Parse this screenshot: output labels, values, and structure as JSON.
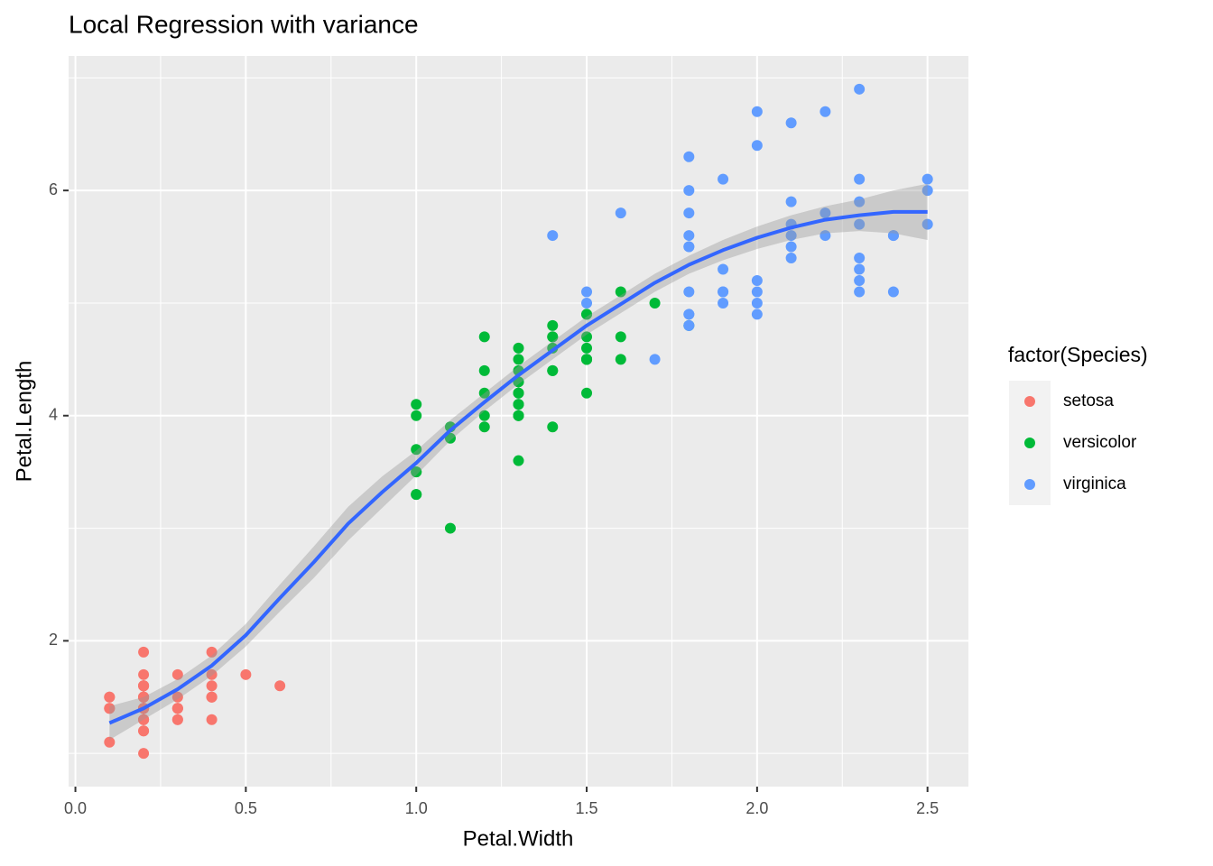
{
  "chart_data": {
    "type": "scatter",
    "title": "Local Regression with variance",
    "x_label": "Petal.Width",
    "y_label": "Petal.Length",
    "legend_title": "factor(Species)",
    "legend_position": "right",
    "grid": true,
    "xlim": [
      -0.02,
      2.62
    ],
    "ylim": [
      0.705,
      7.195
    ],
    "xticks": [
      {
        "value": 0,
        "label": "0.0"
      },
      0.5,
      {
        "value": 1,
        "label": "1.0"
      },
      1.5,
      {
        "value": 2,
        "label": "2.0"
      },
      2.5
    ],
    "yticks": [
      2,
      4,
      6
    ],
    "x_minor_grid": [
      0.25,
      0.75,
      1.25,
      1.75,
      2.25
    ],
    "y_minor_grid": [
      1,
      3,
      5,
      7
    ],
    "series": [
      {
        "name": "setosa",
        "color": "#F8766D",
        "x": [
          0.2,
          0.2,
          0.2,
          0.2,
          0.2,
          0.4,
          0.3,
          0.2,
          0.2,
          0.1,
          0.2,
          0.2,
          0.1,
          0.1,
          0.2,
          0.4,
          0.4,
          0.3,
          0.3,
          0.3,
          0.2,
          0.4,
          0.2,
          0.5,
          0.2,
          0.2,
          0.4,
          0.2,
          0.2,
          0.2,
          0.2,
          0.4,
          0.1,
          0.2,
          0.2,
          0.2,
          0.2,
          0.1,
          0.2,
          0.2,
          0.3,
          0.3,
          0.2,
          0.6,
          0.4,
          0.3,
          0.2,
          0.2,
          0.2,
          0.2
        ],
        "values": [
          1.4,
          1.4,
          1.3,
          1.5,
          1.4,
          1.7,
          1.4,
          1.5,
          1.4,
          1.5,
          1.5,
          1.6,
          1.4,
          1.1,
          1.2,
          1.5,
          1.3,
          1.4,
          1.7,
          1.5,
          1.7,
          1.5,
          1.0,
          1.7,
          1.9,
          1.6,
          1.6,
          1.5,
          1.4,
          1.6,
          1.6,
          1.5,
          1.5,
          1.4,
          1.5,
          1.2,
          1.3,
          1.4,
          1.3,
          1.5,
          1.3,
          1.3,
          1.3,
          1.6,
          1.9,
          1.4,
          1.6,
          1.4,
          1.5,
          1.4
        ]
      },
      {
        "name": "versicolor",
        "color": "#00BA38",
        "x": [
          1.4,
          1.5,
          1.5,
          1.3,
          1.5,
          1.3,
          1.6,
          1.0,
          1.3,
          1.4,
          1.0,
          1.5,
          1.0,
          1.4,
          1.3,
          1.4,
          1.5,
          1.0,
          1.5,
          1.1,
          1.8,
          1.3,
          1.5,
          1.2,
          1.3,
          1.4,
          1.4,
          1.7,
          1.5,
          1.0,
          1.1,
          1.0,
          1.2,
          1.6,
          1.5,
          1.6,
          1.5,
          1.3,
          1.3,
          1.3,
          1.2,
          1.4,
          1.2,
          1.0,
          1.3,
          1.2,
          1.3,
          1.3,
          1.1,
          1.3
        ],
        "values": [
          4.7,
          4.5,
          4.9,
          4.0,
          4.6,
          4.5,
          4.7,
          3.3,
          4.6,
          3.9,
          3.5,
          4.2,
          4.0,
          4.7,
          3.6,
          4.4,
          4.5,
          4.1,
          4.5,
          3.9,
          4.8,
          4.0,
          4.9,
          4.7,
          4.3,
          4.4,
          4.8,
          5.0,
          4.5,
          3.5,
          3.8,
          3.7,
          3.9,
          5.1,
          4.5,
          4.5,
          4.7,
          4.4,
          4.1,
          4.0,
          4.4,
          4.6,
          4.0,
          3.3,
          4.2,
          4.2,
          4.2,
          4.3,
          3.0,
          4.1
        ]
      },
      {
        "name": "virginica",
        "color": "#619CFF",
        "x": [
          2.5,
          1.9,
          2.1,
          1.8,
          2.2,
          2.1,
          1.7,
          1.8,
          1.8,
          2.5,
          2.0,
          1.9,
          2.1,
          2.0,
          2.4,
          2.3,
          1.8,
          2.2,
          2.3,
          1.5,
          2.3,
          2.0,
          2.0,
          1.8,
          2.1,
          1.8,
          1.8,
          1.8,
          2.1,
          1.6,
          1.9,
          2.0,
          2.2,
          1.5,
          1.4,
          2.3,
          2.4,
          1.8,
          1.8,
          2.1,
          2.4,
          2.3,
          1.9,
          2.3,
          2.5,
          2.3,
          1.9,
          2.0,
          2.3,
          1.8
        ],
        "values": [
          6.0,
          5.1,
          5.9,
          5.6,
          5.8,
          6.6,
          4.5,
          6.3,
          5.8,
          6.1,
          5.1,
          5.3,
          5.5,
          5.0,
          5.1,
          5.3,
          5.5,
          6.7,
          6.9,
          5.0,
          5.7,
          4.9,
          6.7,
          4.9,
          5.7,
          6.0,
          4.8,
          4.9,
          5.6,
          5.8,
          6.1,
          6.4,
          5.6,
          5.1,
          5.6,
          6.1,
          5.6,
          5.5,
          4.8,
          5.4,
          5.6,
          5.1,
          5.1,
          5.9,
          5.7,
          5.2,
          5.0,
          5.2,
          5.4,
          5.1
        ]
      }
    ],
    "smooth": {
      "color": "#3366FF",
      "band_color": "#999999",
      "x": [
        0.1,
        0.2,
        0.3,
        0.4,
        0.5,
        0.6,
        0.7,
        0.8,
        0.9,
        1.0,
        1.1,
        1.2,
        1.3,
        1.4,
        1.5,
        1.6,
        1.7,
        1.8,
        1.9,
        2.0,
        2.1,
        2.2,
        2.3,
        2.4,
        2.5
      ],
      "values": [
        1.27,
        1.4,
        1.57,
        1.78,
        2.05,
        2.38,
        2.7,
        3.04,
        3.32,
        3.58,
        3.87,
        4.12,
        4.36,
        4.58,
        4.8,
        4.99,
        5.18,
        5.34,
        5.47,
        5.58,
        5.67,
        5.74,
        5.78,
        5.81,
        5.81
      ],
      "ymin": [
        1.12,
        1.3,
        1.48,
        1.69,
        1.95,
        2.26,
        2.56,
        2.89,
        3.18,
        3.47,
        3.78,
        4.04,
        4.28,
        4.5,
        4.72,
        4.91,
        5.1,
        5.26,
        5.38,
        5.48,
        5.56,
        5.62,
        5.64,
        5.62,
        5.56
      ],
      "ymax": [
        1.42,
        1.5,
        1.66,
        1.87,
        2.15,
        2.5,
        2.84,
        3.19,
        3.46,
        3.69,
        3.96,
        4.2,
        4.44,
        4.66,
        4.88,
        5.07,
        5.26,
        5.42,
        5.56,
        5.68,
        5.78,
        5.86,
        5.92,
        6.0,
        6.06
      ]
    }
  }
}
